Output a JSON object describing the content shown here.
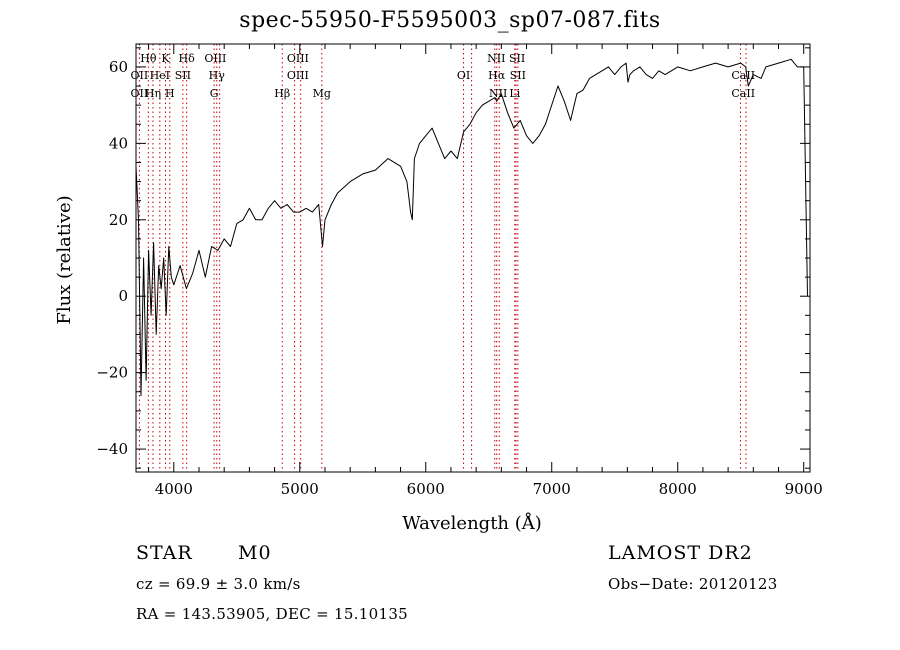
{
  "chart_data": {
    "type": "line",
    "title": "spec-55950-F5595003_sp07-087.fits",
    "xlabel": "Wavelength (Å)",
    "ylabel": "Flux (relative)",
    "xlim": [
      3700,
      9050
    ],
    "ylim": [
      -46,
      66
    ],
    "xticks": [
      4000,
      5000,
      6000,
      7000,
      8000,
      9000
    ],
    "xtick_labels": [
      "4000",
      "5000",
      "6000",
      "7000",
      "8000",
      "9000"
    ],
    "yticks": [
      -40,
      -20,
      0,
      20,
      40,
      60
    ],
    "ytick_labels": [
      "−40",
      "−20",
      "0",
      "20",
      "40",
      "60"
    ],
    "grid": false,
    "series": [
      {
        "x": [
          3700,
          3720,
          3740,
          3760,
          3780,
          3800,
          3820,
          3840,
          3860,
          3880,
          3900,
          3920,
          3940,
          3960,
          3980,
          4000,
          4050,
          4100,
          4150,
          4200,
          4250,
          4300,
          4350,
          4400,
          4450,
          4500,
          4550,
          4600,
          4650,
          4700,
          4750,
          4800,
          4850,
          4900,
          4950,
          5000,
          5050,
          5100,
          5150,
          5180,
          5200,
          5250,
          5300,
          5400,
          5500,
          5600,
          5700,
          5800,
          5850,
          5880,
          5893,
          5910,
          5950,
          6000,
          6050,
          6100,
          6150,
          6200,
          6250,
          6300,
          6350,
          6400,
          6450,
          6500,
          6550,
          6563,
          6600,
          6650,
          6700,
          6750,
          6800,
          6850,
          6900,
          6950,
          7000,
          7050,
          7100,
          7150,
          7200,
          7250,
          7300,
          7350,
          7400,
          7450,
          7500,
          7550,
          7590,
          7605,
          7620,
          7650,
          7700,
          7750,
          7800,
          7850,
          7900,
          7950,
          8000,
          8100,
          8200,
          8300,
          8400,
          8500,
          8540,
          8560,
          8600,
          8662,
          8700,
          8800,
          8900,
          8950,
          9000,
          9030
        ],
        "y": [
          34,
          20,
          -26,
          10,
          -22,
          12,
          -5,
          14,
          -10,
          8,
          2,
          10,
          -5,
          13,
          5,
          3,
          8,
          2,
          6,
          12,
          5,
          13,
          12,
          15,
          13,
          19,
          20,
          23,
          20,
          20,
          23,
          25,
          23,
          24,
          22,
          22,
          23,
          22,
          24,
          13,
          20,
          24,
          27,
          30,
          32,
          33,
          36,
          34,
          30,
          22,
          20,
          36,
          40,
          42,
          44,
          40,
          36,
          38,
          36,
          43,
          45,
          48,
          50,
          51,
          52,
          51,
          53,
          48,
          44,
          46,
          42,
          40,
          42,
          45,
          50,
          55,
          51,
          46,
          53,
          54,
          57,
          58,
          59,
          60,
          58,
          60,
          61,
          56,
          58,
          59,
          60,
          58,
          57,
          59,
          58,
          59,
          60,
          59,
          60,
          61,
          60,
          61,
          60,
          55,
          58,
          57,
          60,
          61,
          62,
          60,
          60,
          0
        ]
      }
    ],
    "lines": [
      {
        "name": "OII",
        "x": 3727
      },
      {
        "name": "Hθ",
        "x": 3798
      },
      {
        "name": "Hη",
        "x": 3835
      },
      {
        "name": "HeI",
        "x": 3889
      },
      {
        "name": "K",
        "x": 3934
      },
      {
        "name": "H",
        "x": 3968
      },
      {
        "name": "SII",
        "x": 4072
      },
      {
        "name": "Hδ",
        "x": 4102
      },
      {
        "name": "OIII",
        "x": 4320
      },
      {
        "name": "Hγ",
        "x": 4341
      },
      {
        "name": "G",
        "x": 4364
      },
      {
        "name": "Hβ",
        "x": 4861
      },
      {
        "name": "OIII",
        "x": 4959
      },
      {
        "name": "OIII",
        "x": 5007
      },
      {
        "name": "Mg",
        "x": 5175
      },
      {
        "name": "OI",
        "x": 6300
      },
      {
        "name": "OI",
        "x": 6364
      },
      {
        "name": "NII",
        "x": 6548
      },
      {
        "name": "Hα",
        "x": 6563
      },
      {
        "name": "NII",
        "x": 6583
      },
      {
        "name": "Li",
        "x": 6707
      },
      {
        "name": "SII",
        "x": 6716
      },
      {
        "name": "SII",
        "x": 6731
      },
      {
        "name": "CaII",
        "x": 8498
      },
      {
        "name": "CaII",
        "x": 8542
      }
    ],
    "line_labels": [
      {
        "text": "Hθ",
        "row": 0,
        "x": 3798
      },
      {
        "text": "K",
        "row": 0,
        "x": 3934
      },
      {
        "text": "Hδ",
        "row": 0,
        "x": 4102
      },
      {
        "text": "OIII",
        "row": 0,
        "x": 4330
      },
      {
        "text": "OIII",
        "row": 0,
        "x": 4985
      },
      {
        "text": "OI",
        "row": 1,
        "x": 6300
      },
      {
        "text": "NII",
        "row": 0,
        "x": 6560
      },
      {
        "text": "SII",
        "row": 0,
        "x": 6725
      },
      {
        "text": "OII",
        "row": 1,
        "x": 3727
      },
      {
        "text": "HeI",
        "row": 1,
        "x": 3889
      },
      {
        "text": "SII",
        "row": 1,
        "x": 4072
      },
      {
        "text": "Hγ",
        "row": 1,
        "x": 4341
      },
      {
        "text": "OIII",
        "row": 1,
        "x": 4985
      },
      {
        "text": "Hα",
        "row": 1,
        "x": 6563
      },
      {
        "text": "SII",
        "row": 1,
        "x": 6731
      },
      {
        "text": "CaII",
        "row": 1,
        "x": 8520
      },
      {
        "text": "OII",
        "row": 2,
        "x": 3727
      },
      {
        "text": "Hη",
        "row": 2,
        "x": 3835
      },
      {
        "text": "H",
        "row": 2,
        "x": 3968
      },
      {
        "text": "G",
        "row": 2,
        "x": 4320
      },
      {
        "text": "Hβ",
        "row": 2,
        "x": 4861
      },
      {
        "text": "Mg",
        "row": 2,
        "x": 5175
      },
      {
        "text": "NII",
        "row": 2,
        "x": 6575
      },
      {
        "text": "Li",
        "row": 2,
        "x": 6707
      },
      {
        "text": "CaII",
        "row": 2,
        "x": 8520
      }
    ],
    "line_color": "#cc0000"
  },
  "info": {
    "object_class": "STAR",
    "subclass": "M0",
    "survey": "LAMOST DR2",
    "cz": "cz = 69.9 ± 3.0 km/s",
    "obs_date": "Obs−Date: 20120123",
    "coords": "RA = 143.53905, DEC =  15.10135"
  }
}
